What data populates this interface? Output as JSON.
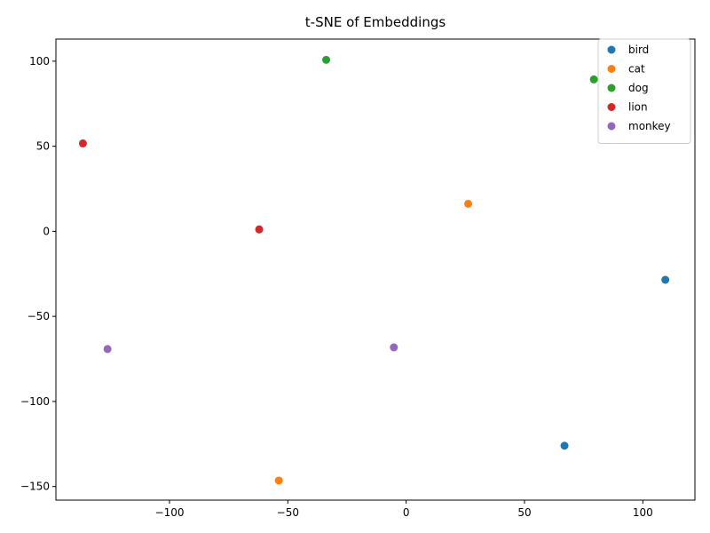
{
  "chart_data": {
    "type": "scatter",
    "title": "t-SNE of Embeddings",
    "xlabel": "",
    "ylabel": "",
    "xlim": [
      -148,
      122
    ],
    "ylim": [
      -158,
      113
    ],
    "x_ticks": [
      -100,
      -50,
      0,
      50,
      100
    ],
    "y_ticks": [
      -150,
      -100,
      -50,
      0,
      50,
      100
    ],
    "x_tick_labels": [
      "−100",
      "−50",
      "0",
      "50",
      "100"
    ],
    "y_tick_labels": [
      "−150",
      "−100",
      "−50",
      "0",
      "50",
      "100"
    ],
    "grid": false,
    "legend_position": "top-right",
    "series": [
      {
        "name": "bird",
        "color": "#1f77b4",
        "points": [
          [
            109.5,
            -28.5
          ],
          [
            66.9,
            -126
          ]
        ]
      },
      {
        "name": "cat",
        "color": "#ff7f0e",
        "points": [
          [
            26.2,
            16.2
          ],
          [
            -53.8,
            -146.5
          ]
        ]
      },
      {
        "name": "dog",
        "color": "#2ca02c",
        "points": [
          [
            -33.8,
            100.8
          ],
          [
            79.3,
            89.3
          ]
        ]
      },
      {
        "name": "lion",
        "color": "#d62728",
        "points": [
          [
            -136.6,
            51.7
          ],
          [
            -62.1,
            1.1
          ]
        ]
      },
      {
        "name": "monkey",
        "color": "#9467bd",
        "points": [
          [
            -126.2,
            -69.2
          ],
          [
            -5.2,
            -68.2
          ]
        ]
      }
    ]
  }
}
